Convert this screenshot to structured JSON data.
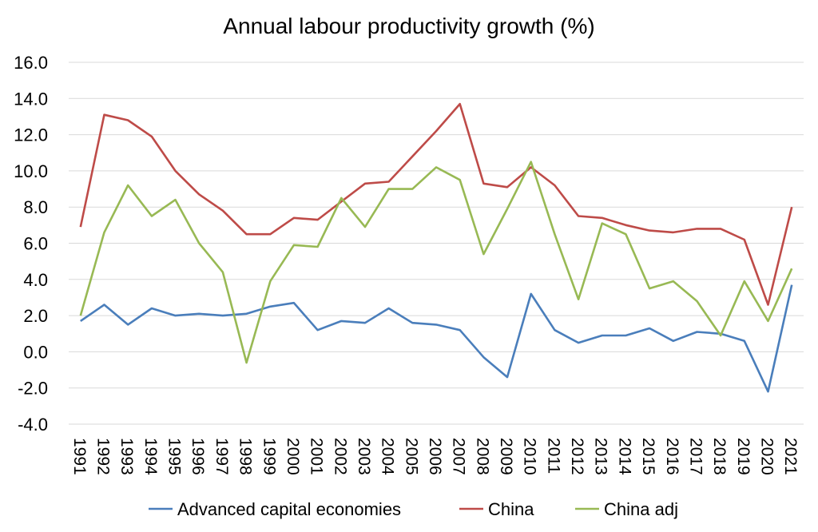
{
  "chart_data": {
    "type": "line",
    "title": "Annual labour productivity growth (%)",
    "xlabel": "",
    "ylabel": "",
    "ylim": [
      -4.0,
      16.0
    ],
    "yticks": [
      "16.0",
      "14.0",
      "12.0",
      "10.0",
      "8.0",
      "6.0",
      "4.0",
      "2.0",
      "0.0",
      "-2.0",
      "-4.0"
    ],
    "grid": true,
    "legend_position": "bottom",
    "x": [
      "1991",
      "1992",
      "1993",
      "1994",
      "1995",
      "1996",
      "1997",
      "1998",
      "1999",
      "2000",
      "2001",
      "2002",
      "2003",
      "2004",
      "2005",
      "2006",
      "2007",
      "2008",
      "2009",
      "2010",
      "2011",
      "2012",
      "2013",
      "2014",
      "2015",
      "2016",
      "2017",
      "2018",
      "2019",
      "2020",
      "2021"
    ],
    "series": [
      {
        "name": "Advanced capital economies",
        "color": "#4a7ebb",
        "values": [
          1.7,
          2.6,
          1.5,
          2.4,
          2.0,
          2.1,
          2.0,
          2.1,
          2.5,
          2.7,
          1.2,
          1.7,
          1.6,
          2.4,
          1.6,
          1.5,
          1.2,
          -0.3,
          -1.4,
          3.2,
          1.2,
          0.5,
          0.9,
          0.9,
          1.3,
          0.6,
          1.1,
          1.0,
          0.6,
          -2.2,
          3.7
        ]
      },
      {
        "name": "China",
        "color": "#be4b48",
        "values": [
          6.9,
          13.1,
          12.8,
          11.9,
          10.0,
          8.7,
          7.8,
          6.5,
          6.5,
          7.4,
          7.3,
          8.3,
          9.3,
          9.4,
          10.8,
          12.2,
          13.7,
          9.3,
          9.1,
          10.2,
          9.2,
          7.5,
          7.4,
          7.0,
          6.7,
          6.6,
          6.8,
          6.8,
          6.2,
          2.6,
          8.0
        ]
      },
      {
        "name": "China adj",
        "color": "#98b954",
        "values": [
          2.0,
          6.6,
          9.2,
          7.5,
          8.4,
          6.0,
          4.4,
          -0.6,
          3.9,
          5.9,
          5.8,
          8.5,
          6.9,
          9.0,
          9.0,
          10.2,
          9.5,
          5.4,
          7.9,
          10.5,
          6.5,
          2.9,
          7.1,
          6.5,
          3.5,
          3.9,
          2.8,
          0.9,
          3.9,
          1.7,
          4.6
        ]
      }
    ]
  }
}
